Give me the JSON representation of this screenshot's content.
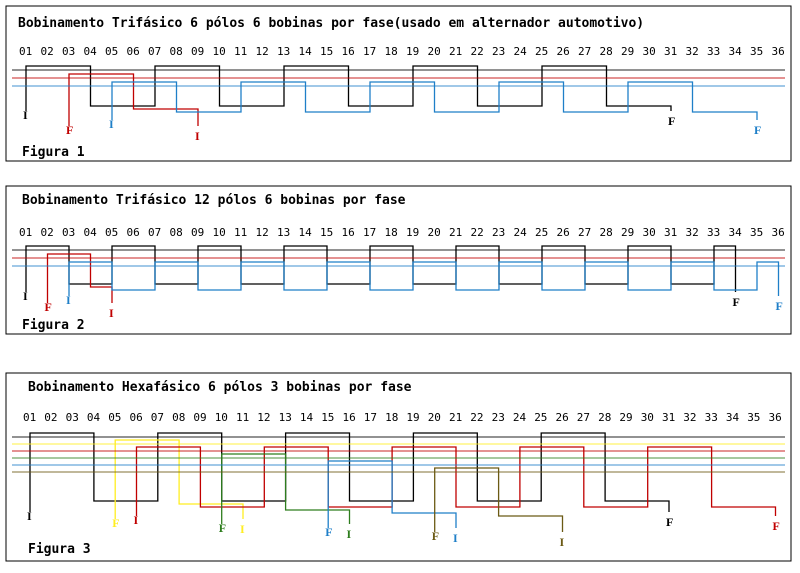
{
  "slots": [
    "01",
    "02",
    "03",
    "04",
    "05",
    "06",
    "07",
    "08",
    "09",
    "10",
    "11",
    "12",
    "13",
    "14",
    "15",
    "16",
    "17",
    "18",
    "19",
    "20",
    "21",
    "22",
    "23",
    "24",
    "25",
    "26",
    "27",
    "28",
    "29",
    "30",
    "31",
    "32",
    "33",
    "34",
    "35",
    "36"
  ],
  "colors": {
    "black": "#000000",
    "red": "#c00000",
    "blue": "#1f7fc8",
    "yellow": "#ffee22",
    "green": "#2e7d1e",
    "brown": "#6b5a14"
  },
  "figures": [
    {
      "id": "fig1",
      "title": "Bobinamento Trifásico 6 pólos 6 bobinas por fase(usado em alternador automotivo)",
      "label": "Figura 1",
      "phases": [
        {
          "color": "black",
          "terminals": [
            {
              "text": "I",
              "slot": 1
            },
            {
              "text": "F",
              "slot": 31
            }
          ]
        },
        {
          "color": "red",
          "terminals": [
            {
              "text": "F",
              "slot": 3
            },
            {
              "text": "I",
              "slot": 9
            }
          ]
        },
        {
          "color": "blue",
          "terminals": [
            {
              "text": "I",
              "slot": 5
            },
            {
              "text": "F",
              "slot": 35
            }
          ]
        }
      ]
    },
    {
      "id": "fig2",
      "title": "Bobinamento Trifásico 12 pólos 6 bobinas por fase",
      "label": "Figura 2",
      "phases": [
        {
          "color": "black",
          "terminals": [
            {
              "text": "I",
              "slot": 1
            },
            {
              "text": "F",
              "slot": 34
            }
          ]
        },
        {
          "color": "red",
          "terminals": [
            {
              "text": "F",
              "slot": 2
            },
            {
              "text": "I",
              "slot": 5
            }
          ]
        },
        {
          "color": "blue",
          "terminals": [
            {
              "text": "I",
              "slot": 3
            },
            {
              "text": "F",
              "slot": 36
            }
          ]
        }
      ]
    },
    {
      "id": "fig3",
      "title": "Bobinamento Hexafásico 6 pólos 3 bobinas por fase",
      "label": "Figura 3",
      "phases": [
        {
          "color": "black",
          "terminals": [
            {
              "text": "I",
              "slot": 1
            },
            {
              "text": "F",
              "slot": 31
            }
          ]
        },
        {
          "color": "yellow",
          "terminals": [
            {
              "text": "F",
              "slot": 5
            },
            {
              "text": "I",
              "slot": 11
            }
          ]
        },
        {
          "color": "red",
          "terminals": [
            {
              "text": "I",
              "slot": 6
            },
            {
              "text": "F",
              "slot": 36
            }
          ]
        },
        {
          "color": "green",
          "terminals": [
            {
              "text": "F",
              "slot": 10
            },
            {
              "text": "I",
              "slot": 16
            }
          ]
        },
        {
          "color": "blue",
          "terminals": [
            {
              "text": "F",
              "slot": 15
            },
            {
              "text": "I",
              "slot": 21
            }
          ]
        },
        {
          "color": "brown",
          "terminals": [
            {
              "text": "F",
              "slot": 20
            },
            {
              "text": "I",
              "slot": 26
            }
          ]
        }
      ]
    }
  ]
}
